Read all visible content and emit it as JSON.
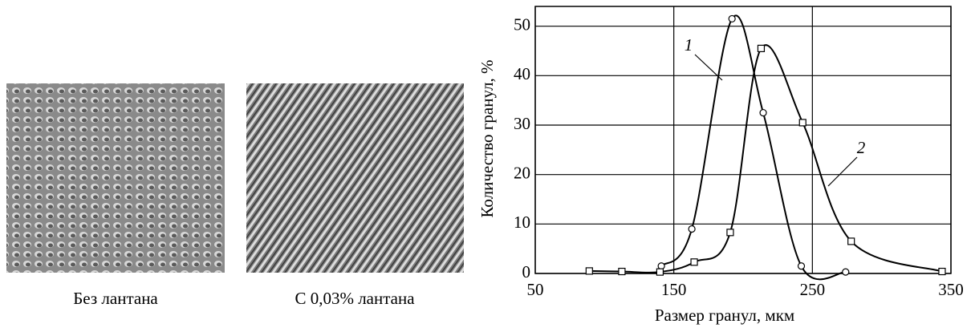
{
  "images": [
    {
      "caption": "Без лантана"
    },
    {
      "caption": "С 0,03% лантана"
    }
  ],
  "chart_data": {
    "type": "line",
    "xlabel": "Размер гранул, мкм",
    "ylabel": "Количество гранул, %",
    "xlim": [
      50,
      350
    ],
    "ylim": [
      0,
      54
    ],
    "xticks": [
      50,
      150,
      250,
      350
    ],
    "yticks": [
      0,
      10,
      20,
      30,
      40,
      50
    ],
    "grid": true,
    "series": [
      {
        "name": "1",
        "color": "#000000",
        "marker": "circle",
        "x": [
          141,
          163,
          192,
          214.5,
          242,
          274
        ],
        "values": [
          1.5,
          9,
          51.5,
          32.5,
          1.5,
          0.3
        ]
      },
      {
        "name": "2",
        "color": "#000000",
        "marker": "square",
        "x": [
          89,
          112.5,
          140,
          164.7,
          190.7,
          213,
          243,
          278,
          343.6
        ],
        "values": [
          0.5,
          0.4,
          0.3,
          2.3,
          8.3,
          45.5,
          30.5,
          6.5,
          0.4
        ]
      }
    ]
  }
}
